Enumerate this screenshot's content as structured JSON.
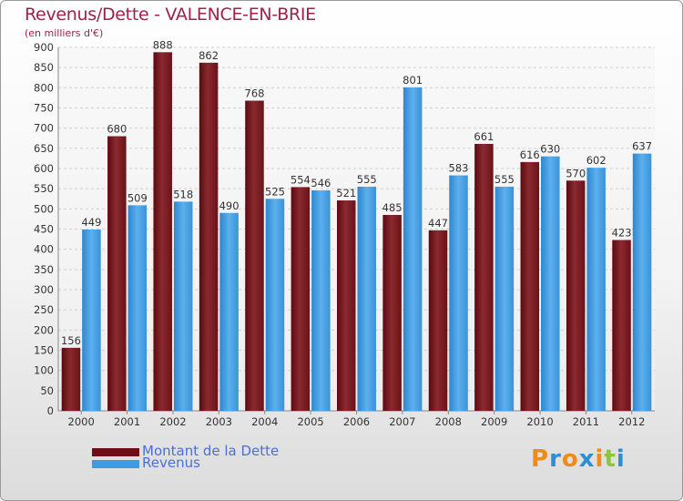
{
  "title": "Revenus/Dette - VALENCE-EN-BRIE",
  "subtitle": "(en milliers d'€)",
  "colors": {
    "dette": "#7a1820",
    "revenus": "#4ea3e4",
    "title": "#a02146",
    "legend_text": "#4a6fd8"
  },
  "chart_data": {
    "type": "bar",
    "categories": [
      "2000",
      "2001",
      "2002",
      "2003",
      "2004",
      "2005",
      "2006",
      "2007",
      "2008",
      "2009",
      "2010",
      "2011",
      "2012"
    ],
    "series": [
      {
        "name": "Montant de la Dette",
        "values": [
          156,
          680,
          888,
          862,
          768,
          554,
          521,
          485,
          447,
          661,
          616,
          570,
          423
        ]
      },
      {
        "name": "Revenus",
        "values": [
          449,
          509,
          518,
          490,
          525,
          546,
          555,
          801,
          583,
          555,
          630,
          602,
          637
        ]
      }
    ],
    "ylim": [
      0,
      900
    ],
    "yticks": [
      0,
      50,
      100,
      150,
      200,
      250,
      300,
      350,
      400,
      450,
      500,
      550,
      600,
      650,
      700,
      750,
      800,
      850,
      900
    ],
    "grid": true,
    "legend_position": "bottom-left"
  },
  "legend": {
    "items": [
      {
        "label": "Montant de la Dette"
      },
      {
        "label": "Revenus"
      }
    ]
  },
  "logo": {
    "letters": [
      "P",
      "r",
      "o",
      "x",
      "i",
      "t",
      "i"
    ],
    "colors": [
      "#f08a1c",
      "#2b8fd6",
      "#f08a1c",
      "#2b8fd6",
      "#f08a1c",
      "#8cc63e",
      "#2b8fd6"
    ]
  }
}
